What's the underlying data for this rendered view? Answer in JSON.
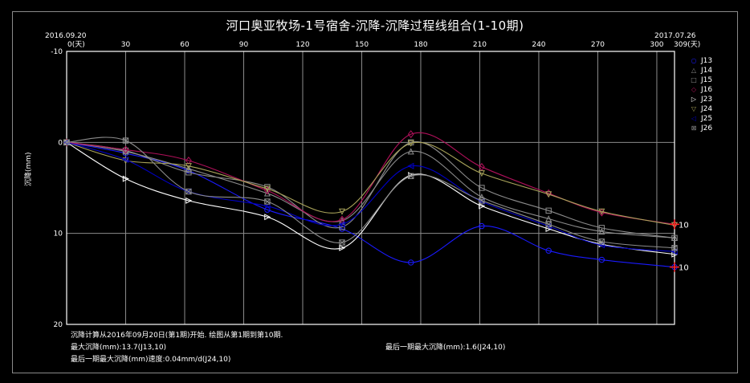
{
  "title": "河口奥亚牧场-1号宿舍-沉降-沉降过程线组合(1-10期)",
  "start_date": "2016.09.20",
  "end_date": "2017.07.26",
  "x_start_label": "0(天)",
  "x_end_label": "309(天)",
  "footer": {
    "line1": "沉降计算从2016年09月20日(第1期)开始. 绘图从第1期到第10期.",
    "max_settlement": "最大沉降(mm):13.7(J13,10)",
    "last_max_settlement": "最后一期最大沉降(mm):1.6(J24,10)",
    "last_max_rate": "最后一期最大沉降(mm)速度:0.04mm/d(J24,10)"
  },
  "end_labels": [
    "10",
    "10"
  ],
  "chart_data": {
    "type": "line",
    "title": "河口奥亚牧场-1号宿舍-沉降-沉降过程线组合(1-10期)",
    "xlabel": "天",
    "ylabel": "沉降(mm)",
    "xlim": [
      0,
      309
    ],
    "ylim": [
      -10,
      20
    ],
    "y_inverted": true,
    "x_ticks": [
      0,
      30,
      60,
      90,
      120,
      150,
      180,
      210,
      240,
      270,
      300,
      309
    ],
    "x_tick_labels": [
      "0(天)",
      "30",
      "60",
      "90",
      "120",
      "150",
      "180",
      "210",
      "240",
      "270",
      "300",
      "309(天)"
    ],
    "y_ticks": [
      -10,
      0,
      10,
      20
    ],
    "grid": true,
    "legend_position": "right",
    "x": [
      0,
      30,
      62,
      102,
      140,
      175,
      211,
      245,
      272,
      309
    ],
    "series": [
      {
        "name": "J13",
        "marker": "circle",
        "color": "#1a1aff",
        "values": [
          0,
          1.2,
          3.1,
          7.4,
          9.5,
          13.2,
          9.2,
          11.9,
          12.9,
          13.7
        ]
      },
      {
        "name": "J14",
        "marker": "triangle",
        "color": "#8c8c8c",
        "values": [
          0,
          1.0,
          2.9,
          5.6,
          8.6,
          1.0,
          6.0,
          8.4,
          9.8,
          10.5
        ]
      },
      {
        "name": "J15",
        "marker": "square",
        "color": "#8c8c8c",
        "values": [
          0,
          0.9,
          3.3,
          4.9,
          9.3,
          0.0,
          5.0,
          7.5,
          9.4,
          10.5
        ]
      },
      {
        "name": "J16",
        "marker": "diamond",
        "color": "#b0105a",
        "values": [
          0,
          0.8,
          2.0,
          5.3,
          8.5,
          -0.9,
          2.7,
          5.6,
          7.7,
          9.0
        ]
      },
      {
        "name": "J23",
        "marker": "right-triangle",
        "color": "#ffffff",
        "values": [
          0,
          4.0,
          6.4,
          8.2,
          11.6,
          3.6,
          7.0,
          9.5,
          11.2,
          12.3
        ]
      },
      {
        "name": "J24",
        "marker": "down-triangle",
        "color": "#a9a35a",
        "values": [
          0,
          2.0,
          2.6,
          5.1,
          7.6,
          0.1,
          3.4,
          5.7,
          7.6,
          9.1
        ]
      },
      {
        "name": "J25",
        "marker": "left-triangle",
        "color": "#0000c8",
        "values": [
          0,
          1.9,
          5.4,
          7.0,
          9.0,
          2.6,
          6.5,
          9.2,
          11.3,
          12.0
        ]
      },
      {
        "name": "J26",
        "marker": "hatched-square",
        "color": "#8c8c8c",
        "values": [
          0,
          -0.2,
          5.4,
          6.5,
          11.0,
          3.7,
          6.4,
          9.0,
          10.9,
          11.6
        ]
      }
    ]
  }
}
